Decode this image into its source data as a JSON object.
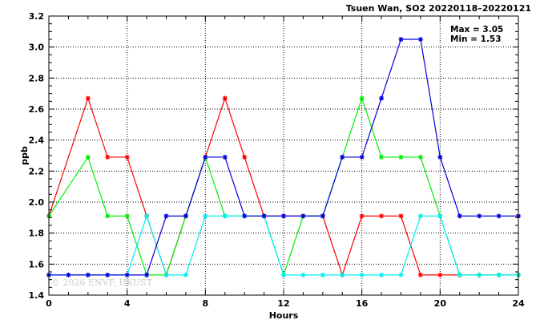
{
  "chart_data": {
    "type": "line",
    "title": "Tsuen Wan, SO2 20220118–20220121",
    "xlabel": "Hours",
    "ylabel": "ppb",
    "xlim": [
      0,
      24
    ],
    "ylim": [
      1.4,
      3.2
    ],
    "x_ticks": [
      0,
      4,
      8,
      12,
      16,
      20,
      24
    ],
    "y_ticks": [
      1.4,
      1.6,
      1.8,
      2.0,
      2.2,
      2.4,
      2.6,
      2.8,
      3.0,
      3.2
    ],
    "y_tick_labels": [
      "1.4",
      "1.6",
      "1.8",
      "2.0",
      "2.2",
      "2.4",
      "2.6",
      "2.8",
      "3.0",
      "3.2"
    ],
    "grid": true,
    "max_label": "Max = 3.05",
    "min_label": "Min = 1.53",
    "watermark": "© 2026 ENVF, HKUST",
    "marker": "asterisk",
    "series": [
      {
        "color": "#ff0000",
        "x": [
          0,
          2,
          3,
          4,
          5,
          6,
          7,
          8,
          9,
          10,
          11,
          12,
          13,
          14,
          15,
          16,
          17,
          18,
          19,
          20,
          21,
          22,
          23,
          24
        ],
        "values": [
          1.91,
          2.67,
          2.29,
          2.29,
          1.91,
          1.53,
          1.91,
          2.29,
          2.67,
          2.29,
          1.91,
          1.91,
          1.91,
          1.91,
          1.53,
          1.91,
          1.91,
          1.91,
          1.53,
          1.53,
          1.53,
          1.53,
          1.53,
          1.53
        ]
      },
      {
        "color": "#00ee00",
        "x": [
          0,
          2,
          3,
          4,
          5,
          6,
          7,
          8,
          9,
          10,
          11,
          12,
          13,
          14,
          15,
          16,
          17,
          18,
          19,
          20,
          21,
          22,
          23,
          24
        ],
        "values": [
          1.91,
          2.29,
          1.91,
          1.91,
          1.53,
          1.53,
          1.91,
          2.29,
          1.91,
          1.91,
          1.91,
          1.53,
          1.91,
          1.91,
          2.29,
          2.67,
          2.29,
          2.29,
          2.29,
          1.91,
          1.53,
          1.53,
          1.53,
          1.53
        ]
      },
      {
        "color": "#00eeee",
        "x": [
          0,
          1,
          2,
          3,
          4,
          5,
          6,
          7,
          8,
          9,
          10,
          11,
          12,
          13,
          14,
          15,
          16,
          17,
          18,
          19,
          20,
          21,
          22,
          23,
          24
        ],
        "values": [
          1.53,
          1.53,
          1.53,
          1.53,
          1.53,
          1.91,
          1.53,
          1.53,
          1.91,
          1.91,
          1.91,
          1.91,
          1.53,
          1.53,
          1.53,
          1.53,
          1.53,
          1.53,
          1.53,
          1.91,
          1.91,
          1.53,
          1.53,
          1.53,
          1.53
        ]
      },
      {
        "color": "#0000dd",
        "x": [
          0,
          1,
          2,
          3,
          4,
          5,
          6,
          7,
          8,
          9,
          10,
          11,
          12,
          13,
          14,
          15,
          16,
          17,
          18,
          19,
          20,
          21,
          22,
          23,
          24
        ],
        "values": [
          1.53,
          1.53,
          1.53,
          1.53,
          1.53,
          1.53,
          1.91,
          1.91,
          2.29,
          2.29,
          1.91,
          1.91,
          1.91,
          1.91,
          1.91,
          2.29,
          2.29,
          2.67,
          3.05,
          3.05,
          2.29,
          1.91,
          1.91,
          1.91,
          1.91
        ]
      }
    ]
  }
}
